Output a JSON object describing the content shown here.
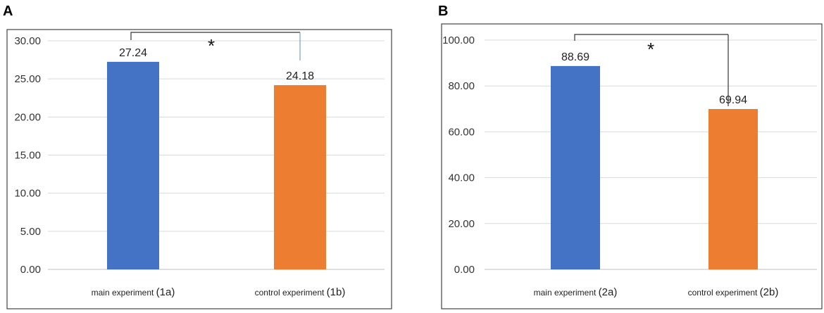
{
  "colors": {
    "main": "#4472C4",
    "control": "#ED7D31",
    "bracket_right_a": "#7a9cc6",
    "bracket_right_b": "#333333"
  },
  "chart_data": [
    {
      "panel": "A",
      "type": "bar",
      "categories": [
        "main experiment",
        "control experiment"
      ],
      "category_suffixes": [
        "(1a)",
        "(1b)"
      ],
      "values": [
        27.24,
        24.18
      ],
      "value_labels": [
        "27.24",
        "24.18"
      ],
      "ylim": [
        0,
        30
      ],
      "yticks": [
        0,
        5,
        10,
        15,
        20,
        25,
        30
      ],
      "ytick_labels": [
        "0.00",
        "5.00",
        "10.00",
        "15.00",
        "20.00",
        "25.00",
        "30.00"
      ],
      "grid": true,
      "significance": {
        "label": "*",
        "from": 0,
        "to": 1
      }
    },
    {
      "panel": "B",
      "type": "bar",
      "categories": [
        "main experiment",
        "control experiment"
      ],
      "category_suffixes": [
        "(2a)",
        "(2b)"
      ],
      "values": [
        88.69,
        69.94
      ],
      "value_labels": [
        "88.69",
        "69.94"
      ],
      "ylim": [
        0,
        100
      ],
      "yticks": [
        0,
        20,
        40,
        60,
        80,
        100
      ],
      "ytick_labels": [
        "0.00",
        "20.00",
        "40.00",
        "60.00",
        "80.00",
        "100.00"
      ],
      "grid": true,
      "significance": {
        "label": "*",
        "from": 0,
        "to": 1
      }
    }
  ]
}
